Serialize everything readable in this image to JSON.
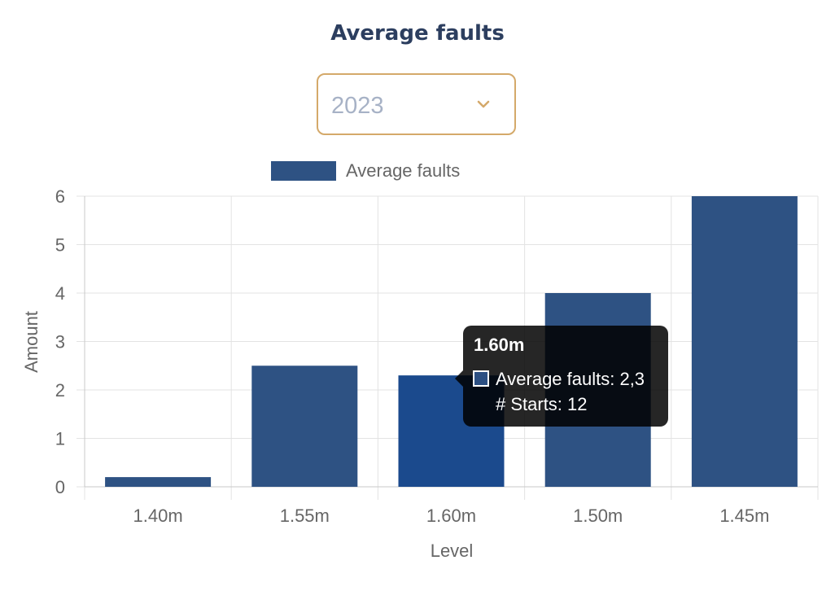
{
  "header": {
    "title": "Average faults"
  },
  "year_select": {
    "value": "2023",
    "icon": "chevron-down-icon"
  },
  "colors": {
    "bar": "#2e5283",
    "bar_active": "#1b4a8d",
    "grid": "#e3e3e3",
    "text": "#666666",
    "accent_border": "#d4a96a"
  },
  "tooltip": {
    "title": "1.60m",
    "lines": [
      "Average faults: 2,3",
      "# Starts: 12"
    ]
  },
  "chart_data": {
    "type": "bar",
    "categories": [
      "1.40m",
      "1.55m",
      "1.60m",
      "1.50m",
      "1.45m"
    ],
    "series": [
      {
        "name": "Average faults",
        "values": [
          0.2,
          2.5,
          2.3,
          4,
          6
        ]
      }
    ],
    "xlabel": "Level",
    "ylabel": "Amount",
    "ylim": [
      0,
      6
    ],
    "yticks": [
      "0",
      "1",
      "2",
      "3",
      "4",
      "5",
      "6"
    ],
    "grid": true,
    "legend": "top",
    "highlighted_category": "1.60m"
  }
}
